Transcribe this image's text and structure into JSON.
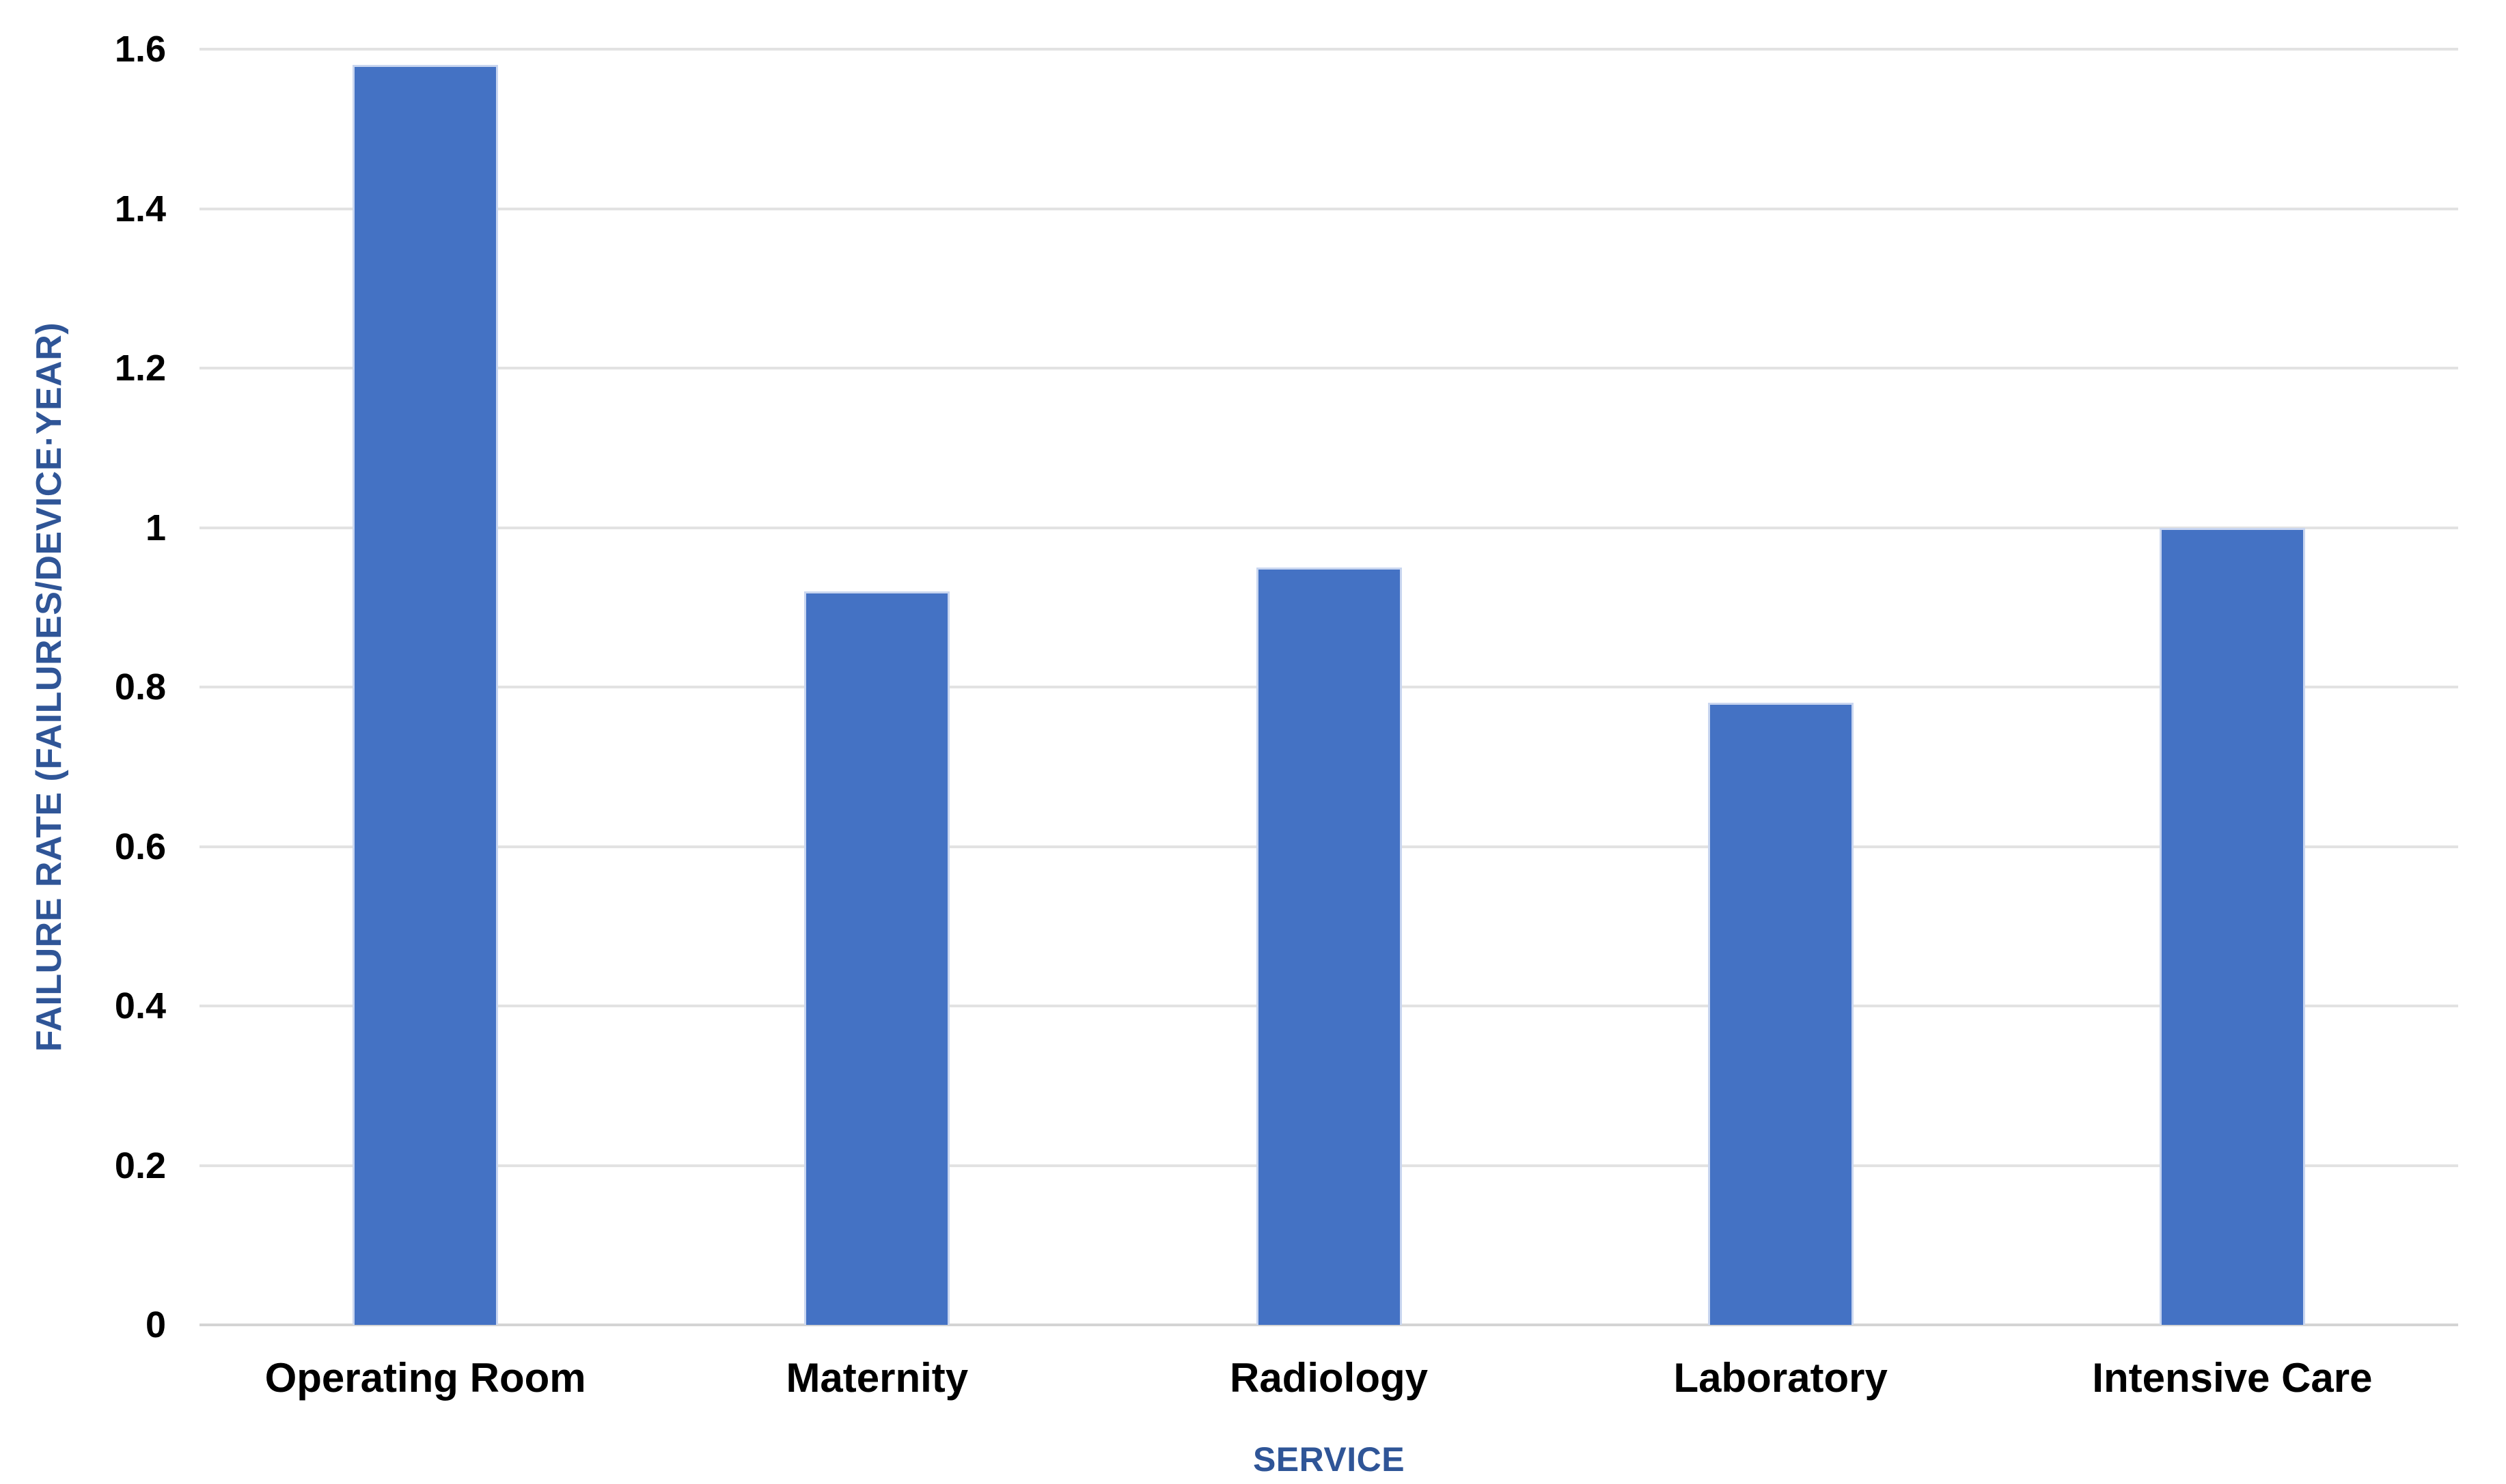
{
  "chart_data": {
    "type": "bar",
    "title": "",
    "categories": [
      "Operating Room",
      "Maternity",
      "Radiology",
      "Laboratory",
      "Intensive Care"
    ],
    "values": [
      1.58,
      0.92,
      0.95,
      0.78,
      1.0
    ],
    "xlabel": "SERVICE",
    "ylabel": "FAILURE RATE (FAILURES/DEVICE·YEAR)",
    "ylim": [
      0,
      1.6
    ],
    "ytick_values": [
      0,
      0.2,
      0.4,
      0.6,
      0.8,
      1,
      1.2,
      1.4,
      1.6
    ],
    "ytick_labels": [
      "0",
      "0.2",
      "0.4",
      "0.6",
      "0.8",
      "1",
      "1.2",
      "1.4",
      "1.6"
    ],
    "grid": "horizontal",
    "legend_position": "none",
    "colors": {
      "bar_fill": "#4472C4",
      "bar_border": "#C9D6F0",
      "axis_title": "#2F5597",
      "tick_label": "#000000",
      "category_label": "#000000",
      "gridline": "#E2E2E2",
      "baseline": "#D4D4D4",
      "background": "#FFFFFF"
    }
  }
}
